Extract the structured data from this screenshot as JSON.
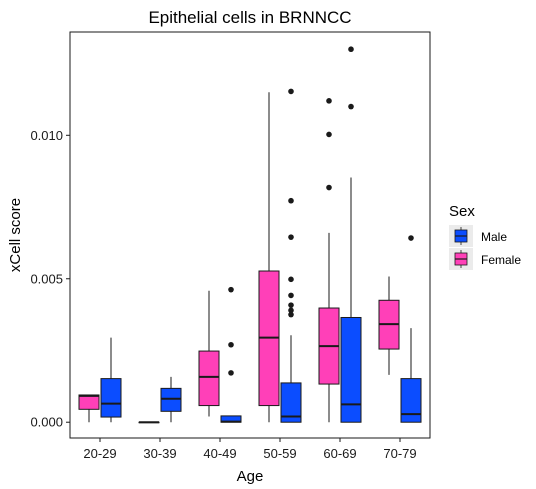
{
  "chart_data": {
    "type": "boxplot",
    "title": "Epithelial cells in BRNNCC",
    "xlabel": "Age",
    "ylabel": "xCell score",
    "categories": [
      "20-29",
      "30-39",
      "40-49",
      "50-59",
      "60-69",
      "70-79"
    ],
    "y_ticks": [
      {
        "value": 0.0,
        "label": "0.000"
      },
      {
        "value": 0.005,
        "label": "0.005"
      },
      {
        "value": 0.01,
        "label": "0.010"
      }
    ],
    "ylim": [
      -0.00055,
      0.0136
    ],
    "grid": false,
    "legend": {
      "title": "Sex",
      "position": "right",
      "entries": [
        {
          "name": "Male",
          "color": "#0b4dff"
        },
        {
          "name": "Female",
          "color": "#ff40b8"
        }
      ]
    },
    "series": [
      {
        "name": "Female",
        "color": "#ff40b8",
        "boxes": [
          {
            "category": "20-29",
            "min": 0.0,
            "q1": 0.00045,
            "median": 0.00092,
            "q3": 0.00095,
            "max": 0.00095,
            "outliers": []
          },
          {
            "category": "30-39",
            "min": 0.0,
            "q1": 0.0,
            "median": 0.0,
            "q3": 0.0,
            "max": 0.0,
            "outliers": []
          },
          {
            "category": "40-49",
            "min": 0.0002,
            "q1": 0.00058,
            "median": 0.00158,
            "q3": 0.00248,
            "max": 0.00458,
            "outliers": []
          },
          {
            "category": "50-59",
            "min": 0.0,
            "q1": 0.00058,
            "median": 0.00295,
            "q3": 0.00527,
            "max": 0.0115,
            "outliers": []
          },
          {
            "category": "60-69",
            "min": 0.0,
            "q1": 0.00133,
            "median": 0.00265,
            "q3": 0.00398,
            "max": 0.0066,
            "outliers": [
              0.00818,
              0.01003,
              0.0112
            ]
          },
          {
            "category": "70-79",
            "min": 0.00165,
            "q1": 0.00255,
            "median": 0.00342,
            "q3": 0.00425,
            "max": 0.00508,
            "outliers": []
          }
        ]
      },
      {
        "name": "Male",
        "color": "#0b4dff",
        "boxes": [
          {
            "category": "20-29",
            "min": 0.0,
            "q1": 0.00018,
            "median": 0.00065,
            "q3": 0.00152,
            "max": 0.00295,
            "outliers": []
          },
          {
            "category": "30-39",
            "min": 0.0,
            "q1": 0.00038,
            "median": 0.00082,
            "q3": 0.00118,
            "max": 0.00158,
            "outliers": []
          },
          {
            "category": "40-49",
            "min": 0.0,
            "q1": 0.0,
            "median": 2e-05,
            "q3": 0.00022,
            "max": 0.00022,
            "outliers": [
              0.00172,
              0.0027,
              0.00462
            ]
          },
          {
            "category": "50-59",
            "min": 0.0,
            "q1": 0.0,
            "median": 0.0002,
            "q3": 0.00137,
            "max": 0.00303,
            "outliers": [
              0.00375,
              0.0039,
              0.00408,
              0.00442,
              0.00498,
              0.00645,
              0.00772,
              0.01153
            ]
          },
          {
            "category": "60-69",
            "min": 0.0,
            "q1": 0.0,
            "median": 0.00062,
            "q3": 0.00365,
            "max": 0.00853,
            "outliers": [
              0.011,
              0.013
            ]
          },
          {
            "category": "70-79",
            "min": 0.0,
            "q1": 0.0,
            "median": 0.00028,
            "q3": 0.00152,
            "max": 0.00328,
            "outliers": [
              0.00642
            ]
          }
        ]
      }
    ]
  }
}
